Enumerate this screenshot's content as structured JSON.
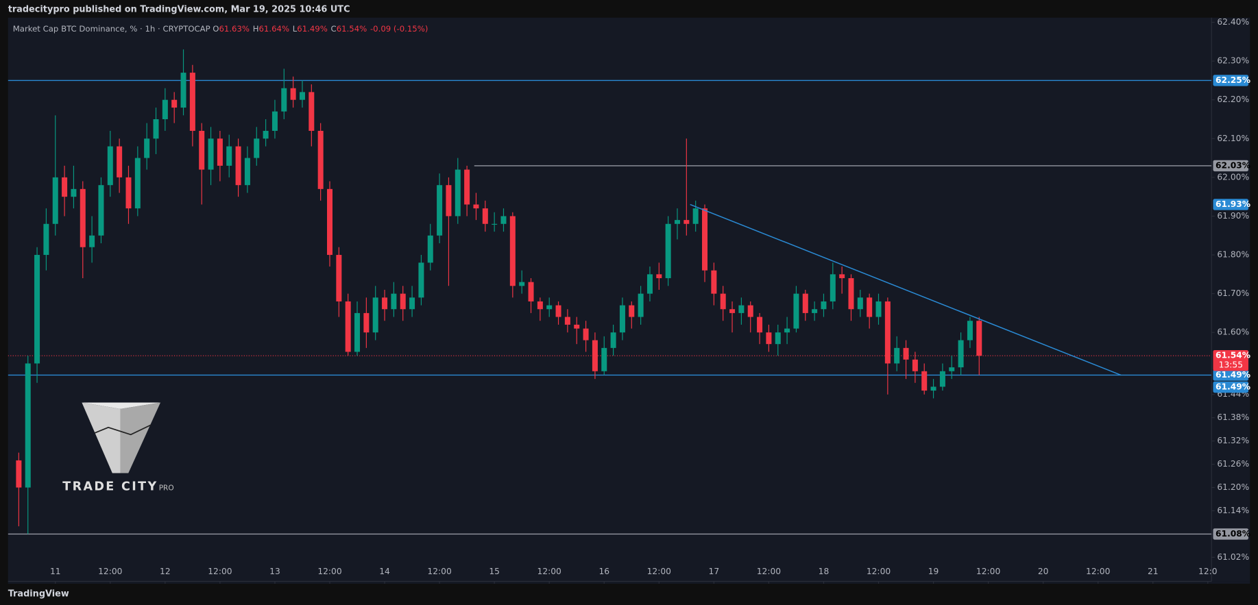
{
  "header": "tradecitypro published on TradingView.com, Mar 19, 2025 10:46 UTC",
  "footer": "TradingView",
  "logo": {
    "name": "TRADE CITY",
    "suffix": "PRO"
  },
  "chart_data": {
    "type": "candlestick",
    "title": "Market Cap BTC Dominance, % · 1h · CRYPTOCAP",
    "legend_values": [
      {
        "key": "O",
        "value": "61.63%"
      },
      {
        "key": "H",
        "value": "61.64%"
      },
      {
        "key": "L",
        "value": "61.49%"
      },
      {
        "key": "C",
        "value": "61.54%"
      }
    ],
    "change": "-0.09 (-0.15%)",
    "up_color": "#089981",
    "down_color": "#f23645",
    "xlim": [
      -10.35,
      252.8
    ],
    "ylim": [
      60.958,
      62.412
    ],
    "xticks": [
      {
        "value": 0,
        "label": "11"
      },
      {
        "value": 12,
        "label": "12:00"
      },
      {
        "value": 24,
        "label": "12"
      },
      {
        "value": 36,
        "label": "12:00"
      },
      {
        "value": 48,
        "label": "13"
      },
      {
        "value": 60,
        "label": "12:00"
      },
      {
        "value": 72,
        "label": "14"
      },
      {
        "value": 84,
        "label": "12:00"
      },
      {
        "value": 96,
        "label": "15"
      },
      {
        "value": 108,
        "label": "12:00"
      },
      {
        "value": 120,
        "label": "16"
      },
      {
        "value": 132,
        "label": "12:00"
      },
      {
        "value": 144,
        "label": "17"
      },
      {
        "value": 156,
        "label": "12:00"
      },
      {
        "value": 168,
        "label": "18"
      },
      {
        "value": 180,
        "label": "12:00"
      },
      {
        "value": 192,
        "label": "19"
      },
      {
        "value": 204,
        "label": "12:00"
      },
      {
        "value": 216,
        "label": "20"
      },
      {
        "value": 228,
        "label": "12:00"
      },
      {
        "value": 240,
        "label": "21"
      },
      {
        "value": 252,
        "label": "12:0"
      }
    ],
    "yticks": [
      {
        "value": 62.4,
        "label": "62.40%"
      },
      {
        "value": 62.3,
        "label": "62.30%"
      },
      {
        "value": 62.2,
        "label": "62.20%"
      },
      {
        "value": 62.1,
        "label": "62.10%"
      },
      {
        "value": 62.0,
        "label": "62.00%"
      },
      {
        "value": 61.9,
        "label": "61.90%"
      },
      {
        "value": 61.8,
        "label": "61.80%"
      },
      {
        "value": 61.7,
        "label": "61.70%"
      },
      {
        "value": 61.6,
        "label": "61.60%"
      },
      {
        "value": 61.44,
        "label": "61.44%"
      },
      {
        "value": 61.38,
        "label": "61.38%"
      },
      {
        "value": 61.32,
        "label": "61.32%"
      },
      {
        "value": 61.26,
        "label": "61.26%"
      },
      {
        "value": 61.2,
        "label": "61.20%"
      },
      {
        "value": 61.14,
        "label": "61.14%"
      },
      {
        "value": 61.08,
        "label": "61.08%"
      },
      {
        "value": 61.02,
        "label": "61.02%"
      }
    ],
    "x": [
      -8,
      -6,
      -4,
      -2,
      0,
      2,
      4,
      6,
      8,
      10,
      12,
      14,
      16,
      18,
      20,
      22,
      24,
      26,
      28,
      30,
      32,
      34,
      36,
      38,
      40,
      42,
      44,
      46,
      48,
      50,
      52,
      54,
      56,
      58,
      60,
      62,
      64,
      66,
      68,
      70,
      72,
      74,
      76,
      78,
      80,
      82,
      84,
      86,
      88,
      90,
      92,
      94,
      96,
      98,
      100,
      102,
      104,
      106,
      108,
      110,
      112,
      114,
      116,
      118,
      120,
      122,
      124,
      126,
      128,
      130,
      132,
      134,
      136,
      138,
      140,
      142,
      144,
      146,
      148,
      150,
      152,
      154,
      156,
      158,
      160,
      162,
      164,
      166,
      168,
      170,
      172,
      174,
      176,
      178,
      180,
      182,
      184,
      186,
      188,
      190,
      192,
      194,
      196,
      198,
      200,
      202
    ],
    "open": [
      61.27,
      61.2,
      61.52,
      61.8,
      61.88,
      62.0,
      61.95,
      61.97,
      61.82,
      61.85,
      61.98,
      62.08,
      62.0,
      61.92,
      62.05,
      62.1,
      62.15,
      62.2,
      62.18,
      62.27,
      62.12,
      62.02,
      62.1,
      62.03,
      62.08,
      61.98,
      62.05,
      62.1,
      62.12,
      62.17,
      62.23,
      62.2,
      62.22,
      62.12,
      61.97,
      61.8,
      61.68,
      61.55,
      61.65,
      61.6,
      61.69,
      61.66,
      61.7,
      61.66,
      61.69,
      61.78,
      61.85,
      61.98,
      61.9,
      62.02,
      61.93,
      61.92,
      61.88,
      61.88,
      61.9,
      61.72,
      61.73,
      61.68,
      61.66,
      61.67,
      61.64,
      61.62,
      61.61,
      61.58,
      61.5,
      61.56,
      61.6,
      61.67,
      61.64,
      61.7,
      61.75,
      61.74,
      61.88,
      61.89,
      61.88,
      61.92,
      61.76,
      61.7,
      61.66,
      61.65,
      61.67,
      61.64,
      61.6,
      61.57,
      61.6,
      61.61,
      61.7,
      61.65,
      61.66,
      61.68,
      61.75,
      61.74,
      61.66,
      61.69,
      61.64,
      61.68,
      61.52,
      61.56,
      61.53,
      61.5,
      61.45,
      61.46,
      61.5,
      61.51,
      61.58,
      61.63
    ],
    "high": [
      61.29,
      61.54,
      61.82,
      61.92,
      62.16,
      62.03,
      62.03,
      61.99,
      61.9,
      62.0,
      62.12,
      62.1,
      62.03,
      62.08,
      62.14,
      62.18,
      62.23,
      62.22,
      62.33,
      62.29,
      62.14,
      62.13,
      62.12,
      62.11,
      62.1,
      62.08,
      62.13,
      62.15,
      62.2,
      62.28,
      62.26,
      62.25,
      62.24,
      62.14,
      61.99,
      61.82,
      61.7,
      61.68,
      61.69,
      61.72,
      61.71,
      61.73,
      61.72,
      61.72,
      61.8,
      61.88,
      62.01,
      62.0,
      62.05,
      62.03,
      61.96,
      61.94,
      61.91,
      61.92,
      61.91,
      61.76,
      61.74,
      61.69,
      61.69,
      61.68,
      61.66,
      61.64,
      61.63,
      61.6,
      61.59,
      61.62,
      61.69,
      61.68,
      61.72,
      61.77,
      61.78,
      61.9,
      61.92,
      62.1,
      61.94,
      61.93,
      61.78,
      61.72,
      61.68,
      61.69,
      61.68,
      61.65,
      61.62,
      61.62,
      61.64,
      61.72,
      61.71,
      61.68,
      61.7,
      61.78,
      61.77,
      61.75,
      61.71,
      61.7,
      61.7,
      61.69,
      61.59,
      61.58,
      61.55,
      61.52,
      61.48,
      61.52,
      61.54,
      61.6,
      61.64,
      61.64
    ],
    "low": [
      61.1,
      61.08,
      61.47,
      61.76,
      61.85,
      61.9,
      61.92,
      61.74,
      61.78,
      61.83,
      61.95,
      61.96,
      61.88,
      61.9,
      62.02,
      62.06,
      62.12,
      62.14,
      62.16,
      62.08,
      61.93,
      61.98,
      61.99,
      62.0,
      61.95,
      61.96,
      62.03,
      62.08,
      62.1,
      62.15,
      62.18,
      62.18,
      62.08,
      61.94,
      61.77,
      61.64,
      61.54,
      61.54,
      61.56,
      61.58,
      61.63,
      61.64,
      61.63,
      61.64,
      61.67,
      61.76,
      61.83,
      61.72,
      61.88,
      61.9,
      61.89,
      61.86,
      61.86,
      61.86,
      61.69,
      61.7,
      61.65,
      61.63,
      61.64,
      61.62,
      61.6,
      61.57,
      61.55,
      61.48,
      61.49,
      61.54,
      61.58,
      61.61,
      61.62,
      61.68,
      61.71,
      61.72,
      61.84,
      61.85,
      61.86,
      61.73,
      61.67,
      61.63,
      61.6,
      61.62,
      61.6,
      61.57,
      61.55,
      61.54,
      61.57,
      61.6,
      61.63,
      61.63,
      61.64,
      61.66,
      61.7,
      61.63,
      61.64,
      61.61,
      61.62,
      61.44,
      61.5,
      61.48,
      61.47,
      61.44,
      61.43,
      61.45,
      61.48,
      61.49,
      61.56,
      61.49
    ],
    "close": [
      61.2,
      61.52,
      61.8,
      61.88,
      62.0,
      61.95,
      61.97,
      61.82,
      61.85,
      61.98,
      62.08,
      62.0,
      61.92,
      62.05,
      62.1,
      62.15,
      62.2,
      62.18,
      62.27,
      62.12,
      62.02,
      62.1,
      62.03,
      62.08,
      61.98,
      62.05,
      62.1,
      62.12,
      62.17,
      62.23,
      62.2,
      62.22,
      62.12,
      61.97,
      61.8,
      61.68,
      61.55,
      61.65,
      61.6,
      61.69,
      61.66,
      61.7,
      61.66,
      61.69,
      61.78,
      61.85,
      61.98,
      61.9,
      62.02,
      61.93,
      61.92,
      61.88,
      61.88,
      61.9,
      61.72,
      61.73,
      61.68,
      61.66,
      61.67,
      61.64,
      61.62,
      61.61,
      61.58,
      61.5,
      61.56,
      61.6,
      61.67,
      61.64,
      61.7,
      61.75,
      61.74,
      61.88,
      61.89,
      61.88,
      61.92,
      61.76,
      61.7,
      61.66,
      61.65,
      61.67,
      61.64,
      61.6,
      61.57,
      61.6,
      61.61,
      61.7,
      61.65,
      61.66,
      61.68,
      61.75,
      61.74,
      61.66,
      61.69,
      61.64,
      61.68,
      61.52,
      61.56,
      61.53,
      61.5,
      61.45,
      61.46,
      61.5,
      61.51,
      61.58,
      61.63,
      61.54
    ],
    "levels": [
      {
        "value": 62.25,
        "label": "62.25%",
        "color": "#2a8ad4"
      },
      {
        "value": 62.03,
        "label": "62.03%",
        "color": "#9598a1",
        "start_x": 91.6
      },
      {
        "value": 61.49,
        "label": "61.49%",
        "color": "#2a8ad4"
      },
      {
        "value": 61.08,
        "label": "61.08%",
        "color": "#9598a1"
      }
    ],
    "trendline": {
      "x": [
        138.8,
        233
      ],
      "values": [
        61.93,
        61.49
      ],
      "labels": [
        "61.93%",
        "61.49%"
      ],
      "color": "#2a8ad4"
    },
    "last_price": {
      "value": 61.54,
      "label": "61.54%",
      "countdown": "13:55",
      "color": "#f23645"
    }
  }
}
